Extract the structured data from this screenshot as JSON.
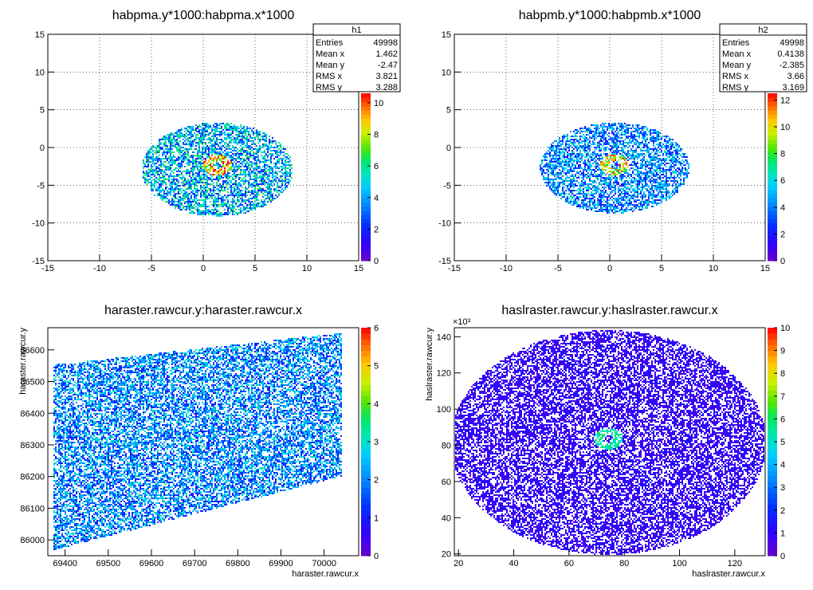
{
  "chart_data": [
    {
      "type": "heatmap",
      "title": "habpma.y*1000:habpma.x*1000",
      "xlabel": "",
      "ylabel": "",
      "xlim": [
        -15,
        15
      ],
      "ylim": [
        -15,
        15
      ],
      "x_ticks": [
        "-15",
        "-10",
        "-5",
        "0",
        "5",
        "10",
        "15"
      ],
      "y_ticks": [
        "-15",
        "-10",
        "-5",
        "0",
        "5",
        "10",
        "15"
      ],
      "grid": true,
      "stats": {
        "name": "h1",
        "rows": [
          {
            "label": "Entries",
            "value": "49998"
          },
          {
            "label": "Mean x",
            "value": "1.462"
          },
          {
            "label": "Mean y",
            "value": "-2.47"
          },
          {
            "label": "RMS x",
            "value": "3.821"
          },
          {
            "label": "RMS y",
            "value": "3.288"
          }
        ]
      },
      "colorbar": {
        "min": 0,
        "max": 10.6,
        "ticks": [
          "0",
          "2",
          "4",
          "6",
          "8",
          "10"
        ]
      },
      "distribution": {
        "shape": "ellipse",
        "center": [
          1.3,
          -2.8
        ],
        "radii": [
          7.3,
          6.2
        ],
        "peak": [
          1.3,
          -2.2
        ],
        "typical_count": 4,
        "max_count": 10
      }
    },
    {
      "type": "heatmap",
      "title": "habpmb.y*1000:habpmb.x*1000",
      "xlabel": "",
      "ylabel": "",
      "xlim": [
        -15,
        15
      ],
      "ylim": [
        -15,
        15
      ],
      "x_ticks": [
        "-15",
        "-10",
        "-5",
        "0",
        "5",
        "10",
        "15"
      ],
      "y_ticks": [
        "-15",
        "-10",
        "-5",
        "0",
        "5",
        "10",
        "15"
      ],
      "grid": true,
      "stats": {
        "name": "h2",
        "rows": [
          {
            "label": "Entries",
            "value": "49998"
          },
          {
            "label": "Mean x",
            "value": "0.4138"
          },
          {
            "label": "Mean y",
            "value": "-2.385"
          },
          {
            "label": "RMS x",
            "value": "3.66"
          },
          {
            "label": "RMS y",
            "value": "3.169"
          }
        ]
      },
      "colorbar": {
        "min": 0,
        "max": 12.5,
        "ticks": [
          "0",
          "2",
          "4",
          "6",
          "8",
          "10",
          "12"
        ]
      },
      "distribution": {
        "shape": "ellipse",
        "center": [
          0.4,
          -2.6
        ],
        "radii": [
          7.2,
          6.0
        ],
        "peak": [
          0.4,
          -2.2
        ],
        "typical_count": 4,
        "max_count": 12
      }
    },
    {
      "type": "heatmap",
      "title": "haraster.rawcur.y:haraster.rawcur.x",
      "xlabel": "haraster.rawcur.x",
      "ylabel": "haraster.rawcur.y",
      "xlim": [
        69360,
        70080
      ],
      "ylim": [
        85950,
        86670
      ],
      "x_ticks": [
        "69400",
        "69500",
        "69600",
        "69700",
        "69800",
        "69900",
        "70000"
      ],
      "y_ticks": [
        "86000",
        "86100",
        "86200",
        "86300",
        "86400",
        "86500",
        "86600"
      ],
      "grid": false,
      "colorbar": {
        "min": 0,
        "max": 6,
        "ticks": [
          "0",
          "1",
          "2",
          "3",
          "4",
          "5",
          "6"
        ]
      },
      "distribution": {
        "shape": "parallelogram",
        "typical_count": 2,
        "max_count": 6
      }
    },
    {
      "type": "heatmap",
      "title": "haslraster.rawcur.y:haslraster.rawcur.x",
      "xlabel": "haslraster.rawcur.x",
      "ylabel": "haslraster.rawcur.y",
      "xlim": [
        18.5,
        131
      ],
      "ylim": [
        19,
        145
      ],
      "x_ticks": [
        "20",
        "40",
        "60",
        "80",
        "100",
        "120"
      ],
      "y_ticks": [
        "20",
        "40",
        "60",
        "80",
        "100",
        "120",
        "140"
      ],
      "y_exponent": "×10³",
      "grid": false,
      "colorbar": {
        "min": 0,
        "max": 10,
        "ticks": [
          "0",
          "1",
          "2",
          "3",
          "4",
          "5",
          "6",
          "7",
          "8",
          "9",
          "10"
        ]
      },
      "distribution": {
        "shape": "ellipse",
        "center": [
          74,
          82
        ],
        "radii": [
          57,
          62
        ],
        "peak": [
          74,
          84
        ],
        "typical_count": 1,
        "max_count": 10
      }
    }
  ]
}
